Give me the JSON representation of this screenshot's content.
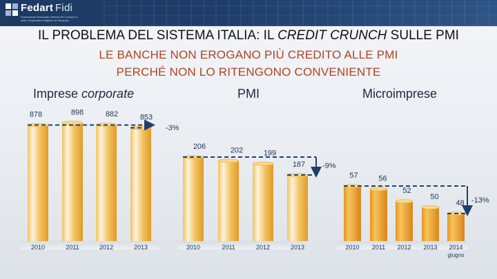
{
  "header": {
    "logo_name": "Fedart",
    "logo_name_light": "Fidi",
    "logo_sub": "Federazione Nazionale Unitaria dei Consorzi e delle Cooperative Artigiane di Garanzia"
  },
  "title": {
    "part1": "IL PROBLEMA DEL SISTEMA ITALIA: IL ",
    "part2_italic": "CREDIT CRUNCH",
    "part3": " SULLE PMI"
  },
  "subtitle": {
    "line1": "LE BANCHE NON EROGANO PIÙ CREDITO ALLE PMI",
    "line2": "PERCHÉ NON LO RITENGONO CONVENIENTE"
  },
  "colors": {
    "bar_light": "#fdf3dd",
    "bar_mid": "#f1c25f",
    "bar_dark": "#e39a26",
    "dashed_line": "#1f3f6b",
    "subtitle": "#b2421c"
  },
  "chart_data": [
    {
      "type": "bar",
      "title_normal": "Imprese ",
      "title_italic": "corporate",
      "categories": [
        "2010",
        "2011",
        "2012",
        "2013"
      ],
      "values": [
        878,
        898,
        882,
        853
      ],
      "value_labels": [
        "878",
        "898",
        "882",
        "853"
      ],
      "change": "-3%"
    },
    {
      "type": "bar",
      "title": "PMI",
      "categories": [
        "2010",
        "2011",
        "2012",
        "2013"
      ],
      "values": [
        206,
        202,
        199,
        187
      ],
      "value_labels": [
        "206",
        "202",
        "199",
        "187"
      ],
      "change": "-9%"
    },
    {
      "type": "bar",
      "title": "Microimprese",
      "categories": [
        "2010",
        "2011",
        "2012",
        "2013",
        "2014"
      ],
      "values": [
        57,
        56,
        52,
        50,
        48
      ],
      "value_labels": [
        "57",
        "56",
        "52",
        "50",
        "48"
      ],
      "change": "-13%",
      "note": "giugno",
      "note_category": "2014"
    }
  ]
}
